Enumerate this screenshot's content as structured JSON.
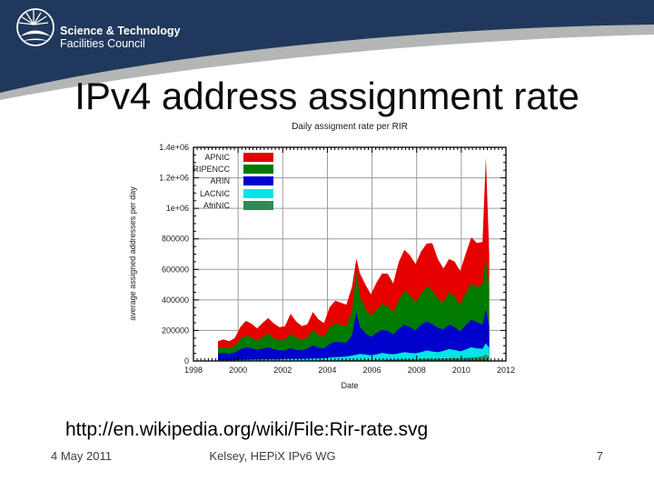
{
  "header": {
    "logo_title": "Science & Technology",
    "logo_subtitle": "Facilities Council",
    "navy_color": "#20385c",
    "gray_color": "#b3b6b4"
  },
  "slide": {
    "title": "IPv4 address assignment rate",
    "source_url": "http://en.wikipedia.org/wiki/File:Rir-rate.svg"
  },
  "footer": {
    "date": "4 May 2011",
    "author": "Kelsey, HEPiX IPv6 WG",
    "page_number": "7"
  },
  "chart_data": {
    "type": "area",
    "stacked": true,
    "title": "Daily assigment rate per RIR",
    "xlabel": "Date",
    "ylabel": "average assigned addresses per day",
    "xlim": [
      1998,
      2012
    ],
    "ylim": [
      0,
      1400000
    ],
    "grid": true,
    "legend_position": "top-left-inside",
    "x_ticks": {
      "values": [
        1998,
        2000,
        2002,
        2004,
        2006,
        2008,
        2010,
        2012
      ],
      "labels": [
        "1998",
        "2000",
        "2002",
        "2004",
        "2006",
        "2008",
        "2010",
        "2012"
      ]
    },
    "y_ticks": {
      "values": [
        0,
        200000,
        400000,
        600000,
        800000,
        1000000,
        1200000,
        1400000
      ],
      "labels": [
        "0",
        "200000",
        "400000",
        "600000",
        "800000",
        "1e+06",
        "1.2e+06",
        "1.4e+06"
      ]
    },
    "stack_order_bottom_to_top": [
      "AfriNIC",
      "LACNIC",
      "ARIN",
      "RIPENCC",
      "APNIC"
    ],
    "x": [
      1999.1,
      1999.35,
      1999.6,
      1999.85,
      2000.1,
      2000.35,
      2000.6,
      2000.85,
      2001.1,
      2001.35,
      2001.6,
      2001.85,
      2002.1,
      2002.35,
      2002.6,
      2002.85,
      2003.1,
      2003.35,
      2003.6,
      2003.85,
      2004.1,
      2004.35,
      2004.6,
      2004.85,
      2005.1,
      2005.3,
      2005.45,
      2005.7,
      2005.95,
      2006.2,
      2006.45,
      2006.7,
      2006.95,
      2007.2,
      2007.45,
      2007.7,
      2007.95,
      2008.2,
      2008.45,
      2008.7,
      2008.95,
      2009.2,
      2009.45,
      2009.7,
      2009.95,
      2010.2,
      2010.45,
      2010.7,
      2010.95,
      2011.1,
      2011.25
    ],
    "series": [
      {
        "name": "APNIC",
        "color": "#e60000",
        "values": [
          45000,
          50000,
          45000,
          50000,
          80000,
          95000,
          90000,
          80000,
          95000,
          100000,
          95000,
          85000,
          90000,
          130000,
          105000,
          90000,
          85000,
          120000,
          100000,
          90000,
          130000,
          150000,
          145000,
          140000,
          160000,
          90000,
          150000,
          160000,
          140000,
          180000,
          200000,
          210000,
          190000,
          250000,
          270000,
          260000,
          250000,
          280000,
          280000,
          310000,
          260000,
          220000,
          220000,
          230000,
          220000,
          260000,
          300000,
          290000,
          280000,
          660000,
          230000
        ]
      },
      {
        "name": "RIPENCC",
        "color": "#007a00",
        "values": [
          35000,
          40000,
          38000,
          45000,
          65000,
          80000,
          70000,
          60000,
          75000,
          90000,
          75000,
          65000,
          70000,
          95000,
          80000,
          70000,
          75000,
          100000,
          85000,
          75000,
          110000,
          120000,
          115000,
          110000,
          160000,
          260000,
          200000,
          160000,
          140000,
          150000,
          170000,
          165000,
          145000,
          190000,
          220000,
          210000,
          185000,
          200000,
          230000,
          220000,
          190000,
          180000,
          210000,
          200000,
          175000,
          210000,
          240000,
          230000,
          260000,
          340000,
          250000
        ]
      },
      {
        "name": "ARIN",
        "color": "#0000cd",
        "values": [
          45000,
          48000,
          42000,
          50000,
          70000,
          80000,
          75000,
          65000,
          70000,
          80000,
          65000,
          60000,
          55000,
          70000,
          60000,
          55000,
          65000,
          85000,
          70000,
          65000,
          90000,
          100000,
          95000,
          90000,
          130000,
          280000,
          180000,
          140000,
          120000,
          140000,
          150000,
          150000,
          130000,
          160000,
          180000,
          170000,
          150000,
          180000,
          190000,
          180000,
          160000,
          140000,
          160000,
          150000,
          130000,
          160000,
          180000,
          170000,
          160000,
          220000,
          140000
        ]
      },
      {
        "name": "LACNIC",
        "color": "#00e5e5",
        "values": [
          3000,
          3000,
          4000,
          4000,
          6000,
          6000,
          7000,
          7000,
          8000,
          9000,
          9000,
          9000,
          10000,
          11000,
          11000,
          11000,
          12000,
          13000,
          13000,
          14000,
          18000,
          20000,
          22000,
          24000,
          30000,
          35000,
          40000,
          35000,
          30000,
          35000,
          45000,
          38000,
          35000,
          40000,
          48000,
          42000,
          38000,
          45000,
          55000,
          48000,
          42000,
          50000,
          60000,
          52000,
          45000,
          55000,
          68000,
          58000,
          50000,
          75000,
          60000
        ]
      },
      {
        "name": "AfriNIC",
        "color": "#2e8b57",
        "values": [
          1000,
          1000,
          1000,
          1000,
          2000,
          2000,
          2000,
          2000,
          2000,
          2000,
          2000,
          2000,
          3000,
          3000,
          3000,
          3000,
          3000,
          3000,
          4000,
          4000,
          4000,
          5000,
          5000,
          5000,
          6000,
          6000,
          6000,
          7000,
          7000,
          8000,
          8000,
          9000,
          9000,
          10000,
          10000,
          11000,
          12000,
          13000,
          14000,
          14000,
          15000,
          16000,
          18000,
          20000,
          18000,
          20000,
          22000,
          25000,
          30000,
          42000,
          25000
        ]
      }
    ]
  }
}
